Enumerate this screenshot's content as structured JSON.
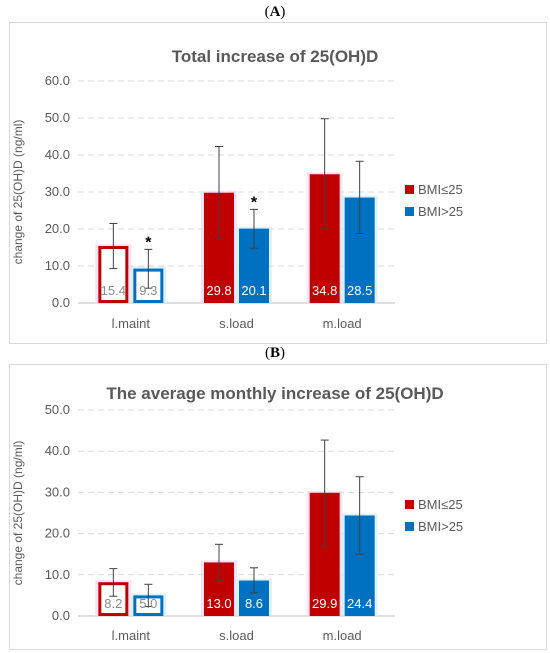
{
  "panels": [
    {
      "label_letter": "A"
    },
    {
      "label_letter": "B"
    }
  ],
  "chart_data": [
    {
      "type": "bar",
      "title": "Total increase of 25(OH)D",
      "ylabel": "change of 25(OH)D (ng/ml)",
      "xlabel": "",
      "categories": [
        "l.maint",
        "s.load",
        "m.load"
      ],
      "ylim": [
        0,
        60
      ],
      "yticks": [
        "0.0",
        "10.0",
        "20.0",
        "30.0",
        "40.0",
        "50.0",
        "60.0"
      ],
      "grid": true,
      "legend_position": "right",
      "series": [
        {
          "name": "BMI≤25",
          "color": "#c00000",
          "values": [
            15.4,
            29.8,
            34.8
          ],
          "data_labels": [
            "15.4",
            "29.8",
            "34.8"
          ],
          "error_low": [
            9.3,
            17.3,
            20.0
          ],
          "error_high": [
            21.5,
            42.3,
            49.8
          ],
          "significance": [
            "",
            "",
            ""
          ]
        },
        {
          "name": "BMI>25",
          "color": "#0070c0",
          "values": [
            9.3,
            20.1,
            28.5
          ],
          "data_labels": [
            "9.3",
            "20.1",
            "28.5"
          ],
          "error_low": [
            4.0,
            14.8,
            18.8
          ],
          "error_high": [
            14.5,
            25.3,
            38.3
          ],
          "significance": [
            "*",
            "*",
            ""
          ]
        }
      ]
    },
    {
      "type": "bar",
      "title": "The average monthly increase of 25(OH)D",
      "ylabel": "change of 25(OH)D (ng/ml)",
      "xlabel": "",
      "categories": [
        "l.maint",
        "s.load",
        "m.load"
      ],
      "ylim": [
        0,
        50
      ],
      "yticks": [
        "0.0",
        "10.0",
        "20.0",
        "30.0",
        "40.0",
        "50.0"
      ],
      "grid": true,
      "legend_position": "right",
      "series": [
        {
          "name": "BMI≤25",
          "color": "#c00000",
          "values": [
            8.2,
            13.0,
            29.9
          ],
          "data_labels": [
            "8.2",
            "13.0",
            "29.9"
          ],
          "error_low": [
            4.8,
            8.6,
            17.0
          ],
          "error_high": [
            11.5,
            17.4,
            42.7
          ],
          "significance": [
            "",
            "",
            ""
          ]
        },
        {
          "name": "BMI>25",
          "color": "#0070c0",
          "values": [
            5.0,
            8.6,
            24.4
          ],
          "data_labels": [
            "5.0",
            "8.6",
            "24.4"
          ],
          "error_low": [
            2.3,
            5.6,
            15.0
          ],
          "error_high": [
            7.7,
            11.7,
            33.8
          ],
          "significance": [
            "",
            "",
            ""
          ]
        }
      ]
    }
  ]
}
